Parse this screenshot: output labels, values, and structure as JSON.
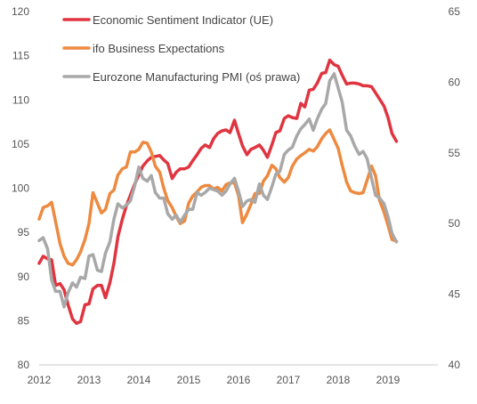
{
  "chart_data": {
    "type": "line",
    "legend_position": "top-left",
    "grid": false,
    "x_ticks": [
      "2012",
      "2013",
      "2014",
      "2015",
      "2016",
      "2017",
      "2018",
      "2019"
    ],
    "x_range": [
      2012,
      2020
    ],
    "y_left": {
      "ticks": [
        "120",
        "115",
        "110",
        "105",
        "100",
        "95",
        "90",
        "85",
        "80"
      ],
      "range": [
        80,
        120
      ]
    },
    "y_right": {
      "ticks": [
        "65",
        "60",
        "55",
        "50",
        "45",
        "40"
      ],
      "range": [
        40,
        65
      ]
    },
    "series": [
      {
        "name": "Economic Sentiment Indicator (UE)",
        "color": "#e03540",
        "axis": "left",
        "points": [
          [
            2012.0,
            91.5
          ],
          [
            2012.08,
            92.3
          ],
          [
            2012.17,
            92.0
          ],
          [
            2012.25,
            91.9
          ],
          [
            2012.33,
            89.0
          ],
          [
            2012.42,
            89.2
          ],
          [
            2012.5,
            88.5
          ],
          [
            2012.58,
            86.8
          ],
          [
            2012.67,
            85.2
          ],
          [
            2012.75,
            84.7
          ],
          [
            2012.83,
            84.9
          ],
          [
            2012.92,
            86.8
          ],
          [
            2013.0,
            86.9
          ],
          [
            2013.08,
            88.6
          ],
          [
            2013.17,
            89.0
          ],
          [
            2013.25,
            89.0
          ],
          [
            2013.33,
            87.6
          ],
          [
            2013.42,
            89.3
          ],
          [
            2013.5,
            91.5
          ],
          [
            2013.58,
            94.5
          ],
          [
            2013.67,
            96.5
          ],
          [
            2013.75,
            98.0
          ],
          [
            2013.83,
            99.2
          ],
          [
            2013.92,
            100.5
          ],
          [
            2014.0,
            101.5
          ],
          [
            2014.08,
            102.5
          ],
          [
            2014.17,
            103.1
          ],
          [
            2014.25,
            103.5
          ],
          [
            2014.33,
            103.6
          ],
          [
            2014.42,
            103.7
          ],
          [
            2014.5,
            103.2
          ],
          [
            2014.58,
            102.8
          ],
          [
            2014.67,
            101.1
          ],
          [
            2014.75,
            101.8
          ],
          [
            2014.83,
            102.2
          ],
          [
            2014.92,
            102.2
          ],
          [
            2015.0,
            102.4
          ],
          [
            2015.08,
            103.1
          ],
          [
            2015.17,
            103.8
          ],
          [
            2015.25,
            104.5
          ],
          [
            2015.33,
            104.9
          ],
          [
            2015.42,
            104.6
          ],
          [
            2015.5,
            105.6
          ],
          [
            2015.58,
            106.2
          ],
          [
            2015.67,
            106.5
          ],
          [
            2015.75,
            106.6
          ],
          [
            2015.83,
            106.3
          ],
          [
            2015.92,
            107.7
          ],
          [
            2016.0,
            106.2
          ],
          [
            2016.08,
            104.8
          ],
          [
            2016.17,
            103.8
          ],
          [
            2016.25,
            104.4
          ],
          [
            2016.33,
            104.6
          ],
          [
            2016.42,
            104.9
          ],
          [
            2016.5,
            104.3
          ],
          [
            2016.58,
            103.5
          ],
          [
            2016.67,
            104.9
          ],
          [
            2016.75,
            106.3
          ],
          [
            2016.83,
            106.5
          ],
          [
            2016.92,
            107.9
          ],
          [
            2017.0,
            108.2
          ],
          [
            2017.08,
            108.0
          ],
          [
            2017.17,
            107.9
          ],
          [
            2017.25,
            109.6
          ],
          [
            2017.33,
            109.2
          ],
          [
            2017.42,
            111.1
          ],
          [
            2017.5,
            111.2
          ],
          [
            2017.58,
            111.9
          ],
          [
            2017.67,
            113.0
          ],
          [
            2017.75,
            113.1
          ],
          [
            2017.83,
            114.5
          ],
          [
            2017.92,
            114.0
          ],
          [
            2018.0,
            113.8
          ],
          [
            2018.08,
            112.8
          ],
          [
            2018.17,
            111.8
          ],
          [
            2018.25,
            111.9
          ],
          [
            2018.33,
            111.9
          ],
          [
            2018.42,
            111.8
          ],
          [
            2018.5,
            111.6
          ],
          [
            2018.58,
            111.6
          ],
          [
            2018.67,
            111.5
          ],
          [
            2018.75,
            110.8
          ],
          [
            2018.83,
            110.1
          ],
          [
            2018.92,
            109.3
          ],
          [
            2019.0,
            108.0
          ],
          [
            2019.08,
            106.2
          ],
          [
            2019.17,
            105.3
          ]
        ]
      },
      {
        "name": "ifo Business Expectations",
        "color": "#ed8a40",
        "axis": "left",
        "points": [
          [
            2012.0,
            96.5
          ],
          [
            2012.08,
            97.8
          ],
          [
            2012.17,
            98.0
          ],
          [
            2012.25,
            98.4
          ],
          [
            2012.33,
            96.2
          ],
          [
            2012.42,
            93.7
          ],
          [
            2012.5,
            92.3
          ],
          [
            2012.58,
            91.5
          ],
          [
            2012.67,
            91.3
          ],
          [
            2012.75,
            91.9
          ],
          [
            2012.83,
            92.8
          ],
          [
            2012.92,
            94.2
          ],
          [
            2013.0,
            96.0
          ],
          [
            2013.08,
            99.5
          ],
          [
            2013.17,
            98.3
          ],
          [
            2013.25,
            97.2
          ],
          [
            2013.33,
            97.6
          ],
          [
            2013.42,
            99.4
          ],
          [
            2013.5,
            99.8
          ],
          [
            2013.58,
            101.5
          ],
          [
            2013.67,
            102.2
          ],
          [
            2013.75,
            102.4
          ],
          [
            2013.83,
            104.1
          ],
          [
            2013.92,
            104.1
          ],
          [
            2014.0,
            104.4
          ],
          [
            2014.08,
            105.2
          ],
          [
            2014.17,
            105.1
          ],
          [
            2014.25,
            104.1
          ],
          [
            2014.33,
            102.5
          ],
          [
            2014.42,
            101.8
          ],
          [
            2014.5,
            100.0
          ],
          [
            2014.58,
            98.6
          ],
          [
            2014.67,
            97.8
          ],
          [
            2014.75,
            96.8
          ],
          [
            2014.83,
            96.0
          ],
          [
            2014.92,
            96.3
          ],
          [
            2015.0,
            98.3
          ],
          [
            2015.08,
            99.1
          ],
          [
            2015.17,
            99.6
          ],
          [
            2015.25,
            100.1
          ],
          [
            2015.33,
            100.3
          ],
          [
            2015.42,
            100.3
          ],
          [
            2015.5,
            99.9
          ],
          [
            2015.58,
            100.1
          ],
          [
            2015.67,
            99.7
          ],
          [
            2015.75,
            100.4
          ],
          [
            2015.83,
            100.6
          ],
          [
            2015.92,
            100.6
          ],
          [
            2016.0,
            99.2
          ],
          [
            2016.08,
            96.1
          ],
          [
            2016.17,
            97.1
          ],
          [
            2016.25,
            98.2
          ],
          [
            2016.33,
            99.4
          ],
          [
            2016.42,
            99.4
          ],
          [
            2016.5,
            100.8
          ],
          [
            2016.58,
            101.4
          ],
          [
            2016.67,
            102.6
          ],
          [
            2016.75,
            102.2
          ],
          [
            2016.83,
            101.2
          ],
          [
            2016.92,
            100.7
          ],
          [
            2017.0,
            101.2
          ],
          [
            2017.08,
            102.5
          ],
          [
            2017.17,
            103.3
          ],
          [
            2017.25,
            103.7
          ],
          [
            2017.33,
            104.0
          ],
          [
            2017.42,
            104.4
          ],
          [
            2017.5,
            104.2
          ],
          [
            2017.58,
            104.7
          ],
          [
            2017.67,
            105.6
          ],
          [
            2017.75,
            106.2
          ],
          [
            2017.83,
            106.6
          ],
          [
            2017.92,
            105.5
          ],
          [
            2018.0,
            104.5
          ],
          [
            2018.08,
            102.6
          ],
          [
            2018.17,
            100.7
          ],
          [
            2018.25,
            99.7
          ],
          [
            2018.33,
            99.5
          ],
          [
            2018.42,
            99.4
          ],
          [
            2018.5,
            99.5
          ],
          [
            2018.58,
            100.9
          ],
          [
            2018.67,
            102.5
          ],
          [
            2018.75,
            101.4
          ],
          [
            2018.83,
            98.6
          ],
          [
            2018.92,
            97.3
          ],
          [
            2019.0,
            95.8
          ],
          [
            2019.08,
            94.2
          ],
          [
            2019.17,
            94.0
          ]
        ]
      },
      {
        "name": "Eurozone Manufacturing PMI (oś prawa)",
        "color": "#a8a8a8",
        "axis": "right",
        "points": [
          [
            2012.0,
            48.8
          ],
          [
            2012.08,
            49.0
          ],
          [
            2012.17,
            48.2
          ],
          [
            2012.25,
            46.0
          ],
          [
            2012.33,
            45.2
          ],
          [
            2012.42,
            45.2
          ],
          [
            2012.5,
            44.1
          ],
          [
            2012.58,
            45.1
          ],
          [
            2012.67,
            45.8
          ],
          [
            2012.75,
            45.5
          ],
          [
            2012.83,
            46.2
          ],
          [
            2012.92,
            46.1
          ],
          [
            2013.0,
            47.7
          ],
          [
            2013.08,
            47.8
          ],
          [
            2013.17,
            46.7
          ],
          [
            2013.25,
            46.6
          ],
          [
            2013.33,
            47.9
          ],
          [
            2013.42,
            48.7
          ],
          [
            2013.5,
            50.3
          ],
          [
            2013.58,
            51.4
          ],
          [
            2013.67,
            51.1
          ],
          [
            2013.75,
            51.3
          ],
          [
            2013.83,
            51.6
          ],
          [
            2013.92,
            52.7
          ],
          [
            2014.0,
            54.0
          ],
          [
            2014.08,
            53.2
          ],
          [
            2014.17,
            53.0
          ],
          [
            2014.25,
            53.4
          ],
          [
            2014.33,
            52.2
          ],
          [
            2014.42,
            51.8
          ],
          [
            2014.5,
            51.8
          ],
          [
            2014.58,
            50.7
          ],
          [
            2014.67,
            50.3
          ],
          [
            2014.75,
            50.6
          ],
          [
            2014.83,
            50.1
          ],
          [
            2014.92,
            50.6
          ],
          [
            2015.0,
            51.0
          ],
          [
            2015.08,
            51.0
          ],
          [
            2015.17,
            52.2
          ],
          [
            2015.25,
            52.0
          ],
          [
            2015.33,
            52.2
          ],
          [
            2015.42,
            52.5
          ],
          [
            2015.5,
            52.4
          ],
          [
            2015.58,
            52.3
          ],
          [
            2015.67,
            52.0
          ],
          [
            2015.75,
            52.3
          ],
          [
            2015.83,
            52.8
          ],
          [
            2015.92,
            53.2
          ],
          [
            2016.0,
            52.3
          ],
          [
            2016.08,
            51.2
          ],
          [
            2016.17,
            51.6
          ],
          [
            2016.25,
            51.7
          ],
          [
            2016.33,
            51.5
          ],
          [
            2016.42,
            52.8
          ],
          [
            2016.5,
            52.0
          ],
          [
            2016.58,
            51.7
          ],
          [
            2016.67,
            52.6
          ],
          [
            2016.75,
            53.5
          ],
          [
            2016.83,
            53.7
          ],
          [
            2016.92,
            54.9
          ],
          [
            2017.0,
            55.2
          ],
          [
            2017.08,
            55.4
          ],
          [
            2017.17,
            56.2
          ],
          [
            2017.25,
            56.7
          ],
          [
            2017.33,
            57.0
          ],
          [
            2017.42,
            57.4
          ],
          [
            2017.5,
            56.6
          ],
          [
            2017.58,
            57.4
          ],
          [
            2017.67,
            58.1
          ],
          [
            2017.75,
            58.5
          ],
          [
            2017.83,
            60.1
          ],
          [
            2017.92,
            60.6
          ],
          [
            2018.0,
            59.6
          ],
          [
            2018.08,
            58.6
          ],
          [
            2018.17,
            56.6
          ],
          [
            2018.25,
            56.2
          ],
          [
            2018.33,
            55.5
          ],
          [
            2018.42,
            54.9
          ],
          [
            2018.5,
            55.1
          ],
          [
            2018.58,
            54.6
          ],
          [
            2018.67,
            53.2
          ],
          [
            2018.75,
            52.0
          ],
          [
            2018.83,
            51.8
          ],
          [
            2018.92,
            51.4
          ],
          [
            2019.0,
            50.5
          ],
          [
            2019.08,
            49.3
          ],
          [
            2019.17,
            48.7
          ]
        ]
      }
    ]
  }
}
